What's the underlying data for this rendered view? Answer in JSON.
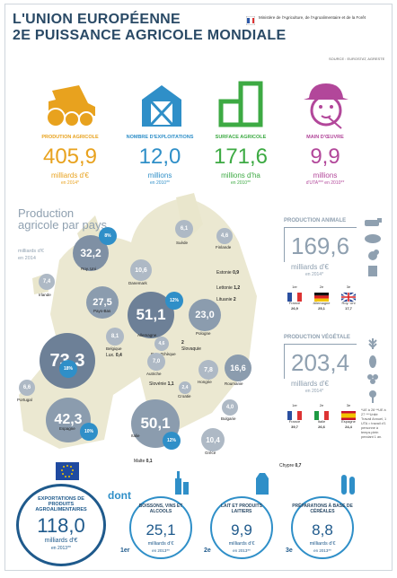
{
  "header": {
    "title_line1": "L'UNION EUROPÉENNE",
    "title_line2": "2E PUISSANCE AGRICOLE MONDIALE",
    "ministry": "Ministère de l'Agriculture, de l'Agroalimentaire et de la Forêt",
    "source": "SOURCE : EUROSTAT, AGRESTE"
  },
  "kpis": [
    {
      "title": "PRODUTION AGRICOLE",
      "value": "405,9",
      "unit": "milliards d'€",
      "sub": "en 2014*",
      "color": "#e8a21e",
      "icon": "tractor-icon"
    },
    {
      "title": "NOMBRE D'EXPLOITATIONS",
      "value": "12,0",
      "unit": "millions",
      "sub": "en 2010**",
      "color": "#2f8fc8",
      "icon": "barn-icon"
    },
    {
      "title": "SURFACE AGRICOLE",
      "value": "171,6",
      "unit": "millions d'ha",
      "sub": "en 2010**",
      "color": "#3daa43",
      "icon": "field-icon"
    },
    {
      "title": "MAIN D'ŒUVRE",
      "value": "9,9",
      "unit": "millions",
      "sub": "d'UTA*** en 2010**",
      "color": "#b2479a",
      "icon": "farmer-icon"
    }
  ],
  "map": {
    "title": "Production agricole par pays",
    "unit": "milliards d'€",
    "year": "en 2014",
    "countries": [
      {
        "name": "Suède",
        "value": "6,1"
      },
      {
        "name": "Finlande",
        "value": "4,6"
      },
      {
        "name": "Roy. Uni",
        "value": "32,2"
      },
      {
        "name": "Irlande",
        "value": "7,4"
      },
      {
        "name": "Danemark",
        "value": "10,6"
      },
      {
        "name": "Estonie",
        "value": "0,9"
      },
      {
        "name": "Lettonie",
        "value": "1,2"
      },
      {
        "name": "Lituanie",
        "value": "2"
      },
      {
        "name": "Pays-Bas",
        "value": "27,5"
      },
      {
        "name": "Allemagne",
        "value": "51,1"
      },
      {
        "name": "Pologne",
        "value": "23,0"
      },
      {
        "name": "Belgique",
        "value": "8,1"
      },
      {
        "name": "Lux.",
        "value": "0,4"
      },
      {
        "name": "Rep. Tchèque",
        "value": "4,6"
      },
      {
        "name": "Slovaquie",
        "value": "2"
      },
      {
        "name": "France",
        "value": "73,3"
      },
      {
        "name": "Autriche",
        "value": "7,0"
      },
      {
        "name": "Hongrie",
        "value": "7,8"
      },
      {
        "name": "Roumanie",
        "value": "16,6"
      },
      {
        "name": "Slovénie",
        "value": "1,1"
      },
      {
        "name": "Croatie",
        "value": "2,4"
      },
      {
        "name": "Portugal",
        "value": "6,6"
      },
      {
        "name": "Espagne",
        "value": "42,3"
      },
      {
        "name": "Italie",
        "value": "50,1"
      },
      {
        "name": "Bulgarie",
        "value": "4,0"
      },
      {
        "name": "Grèce",
        "value": "10,4"
      },
      {
        "name": "Malte",
        "value": "0,1"
      },
      {
        "name": "Chypre",
        "value": "0,7"
      }
    ],
    "badges": [
      "8%",
      "12%",
      "18%",
      "10%",
      "12%"
    ]
  },
  "animal": {
    "title": "PRODUCTION ANIMALE",
    "value": "169,6",
    "unit": "milliards d'€",
    "sub": "en 2014*",
    "ranks": [
      {
        "rank": "1er",
        "country": "France",
        "value": "26,9"
      },
      {
        "rank": "2e",
        "country": "Allemagne",
        "value": "25,1"
      },
      {
        "rank": "3e",
        "country": "Roy. Uni",
        "value": "17,7"
      }
    ]
  },
  "vegetal": {
    "title": "PRODUCTION VÉGÉTALE",
    "value": "203,4",
    "unit": "milliards d'€",
    "sub": "en 2014*",
    "ranks": [
      {
        "rank": "1er",
        "country": "France",
        "value": "39,7"
      },
      {
        "rank": "2e",
        "country": "Italie",
        "value": "26,6"
      },
      {
        "rank": "3e",
        "country": "Espagne",
        "value": "24,4"
      }
    ]
  },
  "footnote": "*UE à 28 **UE à 27 ***Unité Travail Annuel, 1 UTA = travail d'1 personne à temps plein pendant 1 an.",
  "exports": {
    "title": "EXPORTATIONS DE PRODUITS AGROALIMENTAIRES",
    "value": "118,0",
    "unit": "milliards d'€",
    "sub": "en 2013**",
    "dont": "dont",
    "items": [
      {
        "rank": "1er",
        "title": "BOISSONS, VINS ET ALCOOLS",
        "value": "25,1",
        "unit": "milliards d'€",
        "sub": "en 2013**"
      },
      {
        "rank": "2e",
        "title": "LAIT ET PRODUITS LAITIERS",
        "value": "9,9",
        "unit": "milliards d'€",
        "sub": "en 2013**"
      },
      {
        "rank": "3e",
        "title": "PRÉPARATIONS À BASE DE CÉRÉALES",
        "value": "8,8",
        "unit": "milliards d'€",
        "sub": "en 2013**"
      }
    ]
  }
}
